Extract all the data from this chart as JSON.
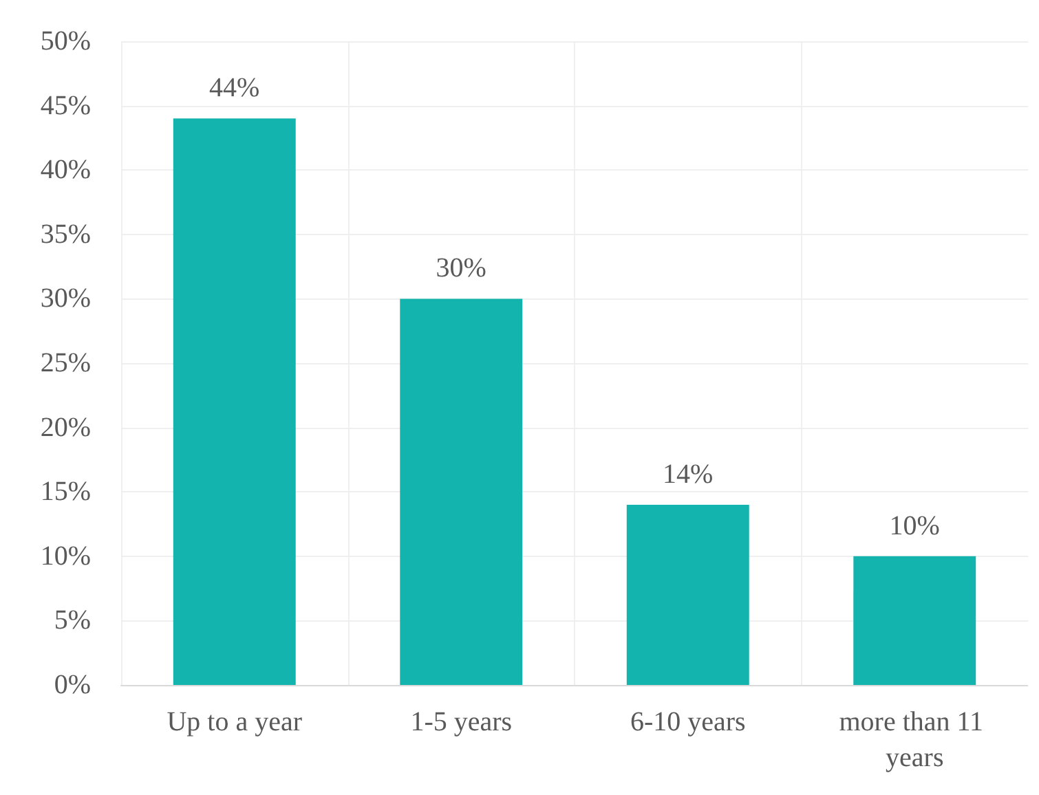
{
  "chart_data": {
    "type": "bar",
    "categories": [
      "Up to a year",
      "1-5 years",
      "6-10 years",
      "more than 11 years"
    ],
    "values": [
      44,
      30,
      14,
      10
    ],
    "value_labels": [
      "44%",
      "30%",
      "14%",
      "10%"
    ],
    "color": "#14b4ae",
    "ylim": [
      0,
      50
    ],
    "yticks": [
      {
        "value": 0,
        "label": "0%"
      },
      {
        "value": 5,
        "label": "5%"
      },
      {
        "value": 10,
        "label": "10%"
      },
      {
        "value": 15,
        "label": "15%"
      },
      {
        "value": 20,
        "label": "20%"
      },
      {
        "value": 25,
        "label": "25%"
      },
      {
        "value": 30,
        "label": "30%"
      },
      {
        "value": 35,
        "label": "35%"
      },
      {
        "value": 40,
        "label": "40%"
      },
      {
        "value": 45,
        "label": "45%"
      },
      {
        "value": 50,
        "label": "50%"
      }
    ],
    "grid": true
  }
}
